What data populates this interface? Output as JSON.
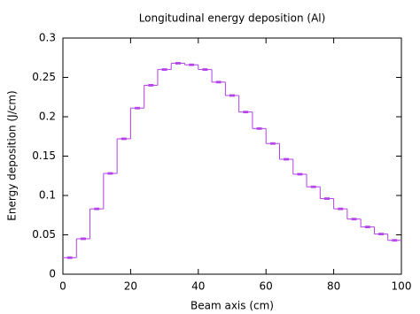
{
  "chart_data": {
    "type": "histogram",
    "title": "Longitudinal energy deposition (Al)",
    "x_label": "Beam axis (cm)",
    "y_label": "Energy deposition (J/cm)",
    "bins": [
      0,
      4,
      8,
      12,
      16,
      20,
      24,
      28,
      32,
      36,
      40,
      44,
      48,
      52,
      56,
      60,
      64,
      68,
      72,
      76,
      80,
      84,
      88,
      92,
      96,
      100
    ],
    "counts": [
      0.021,
      0.045,
      0.083,
      0.128,
      0.172,
      0.211,
      0.24,
      0.26,
      0.268,
      0.266,
      0.26,
      0.244,
      0.227,
      0.206,
      0.185,
      0.166,
      0.146,
      0.127,
      0.111,
      0.096,
      0.083,
      0.07,
      0.06,
      0.051,
      0.043
    ],
    "errors": [
      0.001,
      0.001,
      0.001,
      0.001,
      0.001,
      0.001,
      0.001,
      0.001,
      0.001,
      0.001,
      0.001,
      0.001,
      0.001,
      0.001,
      0.001,
      0.001,
      0.001,
      0.001,
      0.001,
      0.001,
      0.001,
      0.001,
      0.001,
      0.001,
      0.001
    ],
    "color": "#b23fe8",
    "xlim": [
      0,
      100
    ],
    "xticks": [
      0,
      20,
      40,
      60,
      80,
      100
    ],
    "ylim": [
      0,
      0.3
    ],
    "yticks": [
      0,
      0.05,
      0.1,
      0.15,
      0.2,
      0.25,
      0.3
    ]
  }
}
